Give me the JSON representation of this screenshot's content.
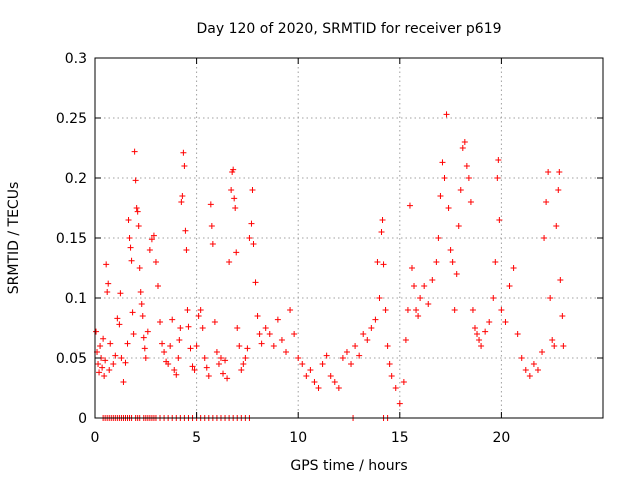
{
  "chart_data": {
    "type": "scatter",
    "title": "Day 120 of 2020, SRMTID for receiver p619",
    "xlabel": "GPS time / hours",
    "ylabel": "SRMTID / TECUs",
    "xlim": [
      0,
      25
    ],
    "ylim": [
      0,
      0.3
    ],
    "xticks": [
      0,
      5,
      10,
      15,
      20
    ],
    "yticks": [
      0,
      0.05,
      0.1,
      0.15,
      0.2,
      0.25,
      0.3
    ],
    "xtick_labels": [
      "0",
      "5",
      "10",
      "15",
      "20"
    ],
    "ytick_labels": [
      "0",
      "0.05",
      "0.1",
      "0.15",
      "0.2",
      "0.25",
      "0.3"
    ],
    "grid": true,
    "marker": "+",
    "color": "#ff0000",
    "series": [
      {
        "name": "SRMTID p619",
        "points": [
          [
            0.05,
            0.072
          ],
          [
            0.1,
            0.055
          ],
          [
            0.15,
            0.045
          ],
          [
            0.2,
            0.038
          ],
          [
            0.25,
            0.06
          ],
          [
            0.3,
            0.05
          ],
          [
            0.35,
            0.042
          ],
          [
            0.4,
            0.066
          ],
          [
            0.45,
            0.035
          ],
          [
            0.5,
            0.048
          ],
          [
            0.55,
            0.128
          ],
          [
            0.6,
            0.105
          ],
          [
            0.65,
            0.112
          ],
          [
            0.7,
            0.04
          ],
          [
            0.75,
            0.062
          ],
          [
            0.9,
            0.045
          ],
          [
            1.0,
            0.052
          ],
          [
            1.1,
            0.083
          ],
          [
            1.2,
            0.078
          ],
          [
            1.25,
            0.104
          ],
          [
            1.3,
            0.05
          ],
          [
            1.4,
            0.03
          ],
          [
            1.5,
            0.046
          ],
          [
            1.6,
            0.062
          ],
          [
            1.65,
            0.165
          ],
          [
            1.7,
            0.15
          ],
          [
            1.75,
            0.142
          ],
          [
            1.8,
            0.131
          ],
          [
            1.85,
            0.088
          ],
          [
            1.9,
            0.07
          ],
          [
            1.95,
            0.222
          ],
          [
            2.0,
            0.198
          ],
          [
            2.05,
            0.175
          ],
          [
            2.1,
            0.172
          ],
          [
            2.15,
            0.16
          ],
          [
            2.2,
            0.125
          ],
          [
            2.25,
            0.105
          ],
          [
            2.3,
            0.095
          ],
          [
            2.35,
            0.085
          ],
          [
            2.4,
            0.067
          ],
          [
            2.45,
            0.058
          ],
          [
            2.5,
            0.05
          ],
          [
            2.6,
            0.072
          ],
          [
            2.7,
            0.14
          ],
          [
            2.8,
            0.149
          ],
          [
            2.9,
            0.152
          ],
          [
            3.0,
            0.13
          ],
          [
            3.1,
            0.11
          ],
          [
            3.2,
            0.08
          ],
          [
            3.3,
            0.062
          ],
          [
            3.4,
            0.055
          ],
          [
            3.5,
            0.047
          ],
          [
            3.6,
            0.045
          ],
          [
            3.7,
            0.06
          ],
          [
            3.8,
            0.082
          ],
          [
            3.9,
            0.04
          ],
          [
            4.0,
            0.036
          ],
          [
            4.1,
            0.05
          ],
          [
            4.15,
            0.065
          ],
          [
            4.2,
            0.075
          ],
          [
            4.25,
            0.18
          ],
          [
            4.3,
            0.185
          ],
          [
            4.35,
            0.221
          ],
          [
            4.4,
            0.21
          ],
          [
            4.45,
            0.156
          ],
          [
            4.5,
            0.14
          ],
          [
            4.55,
            0.09
          ],
          [
            4.6,
            0.076
          ],
          [
            4.7,
            0.058
          ],
          [
            4.8,
            0.043
          ],
          [
            4.9,
            0.04
          ],
          [
            5.0,
            0.06
          ],
          [
            5.1,
            0.085
          ],
          [
            5.2,
            0.09
          ],
          [
            5.3,
            0.075
          ],
          [
            5.4,
            0.05
          ],
          [
            5.5,
            0.042
          ],
          [
            5.6,
            0.035
          ],
          [
            5.7,
            0.178
          ],
          [
            5.75,
            0.16
          ],
          [
            5.8,
            0.145
          ],
          [
            5.9,
            0.08
          ],
          [
            6.0,
            0.055
          ],
          [
            6.1,
            0.045
          ],
          [
            6.2,
            0.05
          ],
          [
            6.3,
            0.037
          ],
          [
            6.4,
            0.048
          ],
          [
            6.5,
            0.033
          ],
          [
            6.6,
            0.13
          ],
          [
            6.7,
            0.19
          ],
          [
            6.75,
            0.205
          ],
          [
            6.8,
            0.207
          ],
          [
            6.85,
            0.183
          ],
          [
            6.9,
            0.175
          ],
          [
            6.95,
            0.138
          ],
          [
            7.0,
            0.075
          ],
          [
            7.1,
            0.06
          ],
          [
            7.2,
            0.04
          ],
          [
            7.3,
            0.045
          ],
          [
            7.4,
            0.05
          ],
          [
            7.5,
            0.058
          ],
          [
            7.6,
            0.15
          ],
          [
            7.7,
            0.162
          ],
          [
            7.75,
            0.19
          ],
          [
            7.8,
            0.145
          ],
          [
            7.9,
            0.113
          ],
          [
            8.0,
            0.085
          ],
          [
            8.1,
            0.07
          ],
          [
            8.2,
            0.062
          ],
          [
            8.4,
            0.075
          ],
          [
            8.6,
            0.07
          ],
          [
            8.8,
            0.06
          ],
          [
            9.0,
            0.082
          ],
          [
            9.2,
            0.065
          ],
          [
            9.4,
            0.055
          ],
          [
            9.6,
            0.09
          ],
          [
            9.8,
            0.07
          ],
          [
            10.0,
            0.05
          ],
          [
            10.2,
            0.045
          ],
          [
            10.4,
            0.035
          ],
          [
            10.6,
            0.04
          ],
          [
            10.8,
            0.03
          ],
          [
            11.0,
            0.025
          ],
          [
            11.2,
            0.045
          ],
          [
            11.4,
            0.052
          ],
          [
            11.6,
            0.035
          ],
          [
            11.8,
            0.03
          ],
          [
            12.0,
            0.025
          ],
          [
            12.2,
            0.05
          ],
          [
            12.4,
            0.055
          ],
          [
            12.6,
            0.045
          ],
          [
            12.8,
            0.06
          ],
          [
            13.0,
            0.052
          ],
          [
            13.2,
            0.07
          ],
          [
            13.4,
            0.065
          ],
          [
            13.6,
            0.075
          ],
          [
            13.8,
            0.082
          ],
          [
            13.9,
            0.13
          ],
          [
            14.0,
            0.1
          ],
          [
            14.1,
            0.155
          ],
          [
            14.15,
            0.165
          ],
          [
            14.2,
            0.128
          ],
          [
            14.3,
            0.09
          ],
          [
            14.4,
            0.06
          ],
          [
            14.5,
            0.045
          ],
          [
            14.6,
            0.035
          ],
          [
            14.8,
            0.025
          ],
          [
            15.0,
            0.012
          ],
          [
            15.2,
            0.03
          ],
          [
            15.3,
            0.065
          ],
          [
            15.4,
            0.09
          ],
          [
            15.5,
            0.177
          ],
          [
            15.6,
            0.125
          ],
          [
            15.7,
            0.11
          ],
          [
            15.8,
            0.09
          ],
          [
            15.9,
            0.085
          ],
          [
            16.0,
            0.1
          ],
          [
            16.2,
            0.11
          ],
          [
            16.4,
            0.095
          ],
          [
            16.6,
            0.115
          ],
          [
            16.8,
            0.13
          ],
          [
            16.9,
            0.15
          ],
          [
            17.0,
            0.185
          ],
          [
            17.1,
            0.213
          ],
          [
            17.2,
            0.2
          ],
          [
            17.3,
            0.253
          ],
          [
            17.4,
            0.175
          ],
          [
            17.5,
            0.14
          ],
          [
            17.6,
            0.13
          ],
          [
            17.7,
            0.09
          ],
          [
            17.8,
            0.12
          ],
          [
            17.9,
            0.16
          ],
          [
            18.0,
            0.19
          ],
          [
            18.1,
            0.225
          ],
          [
            18.2,
            0.23
          ],
          [
            18.3,
            0.21
          ],
          [
            18.4,
            0.2
          ],
          [
            18.5,
            0.18
          ],
          [
            18.6,
            0.09
          ],
          [
            18.7,
            0.075
          ],
          [
            18.8,
            0.07
          ],
          [
            18.9,
            0.065
          ],
          [
            19.0,
            0.06
          ],
          [
            19.2,
            0.072
          ],
          [
            19.4,
            0.08
          ],
          [
            19.6,
            0.1
          ],
          [
            19.7,
            0.13
          ],
          [
            19.8,
            0.2
          ],
          [
            19.85,
            0.215
          ],
          [
            19.9,
            0.165
          ],
          [
            20.0,
            0.09
          ],
          [
            20.2,
            0.08
          ],
          [
            20.4,
            0.11
          ],
          [
            20.6,
            0.125
          ],
          [
            20.8,
            0.07
          ],
          [
            21.0,
            0.05
          ],
          [
            21.2,
            0.04
          ],
          [
            21.4,
            0.035
          ],
          [
            21.6,
            0.045
          ],
          [
            21.8,
            0.04
          ],
          [
            22.0,
            0.055
          ],
          [
            22.1,
            0.15
          ],
          [
            22.2,
            0.18
          ],
          [
            22.3,
            0.205
          ],
          [
            22.4,
            0.1
          ],
          [
            22.5,
            0.065
          ],
          [
            22.6,
            0.06
          ],
          [
            22.7,
            0.16
          ],
          [
            22.8,
            0.19
          ],
          [
            22.85,
            0.205
          ],
          [
            22.9,
            0.115
          ],
          [
            23.0,
            0.085
          ],
          [
            23.05,
            0.06
          ]
        ],
        "zeros": [
          0.4,
          0.5,
          0.6,
          0.7,
          0.8,
          0.9,
          1.0,
          1.1,
          1.2,
          1.3,
          1.4,
          1.5,
          1.6,
          1.7,
          1.8,
          2.0,
          2.1,
          2.2,
          2.4,
          2.5,
          2.6,
          2.7,
          2.8,
          2.9,
          3.0,
          3.2,
          3.4,
          3.6,
          3.8,
          4.0,
          4.2,
          4.4,
          4.6,
          4.8,
          5.0,
          5.2,
          5.4,
          5.6,
          5.8,
          6.0,
          6.2,
          6.4,
          6.6,
          6.8,
          7.0,
          7.2,
          7.4,
          7.6,
          12.7,
          14.2,
          14.4
        ]
      }
    ]
  }
}
